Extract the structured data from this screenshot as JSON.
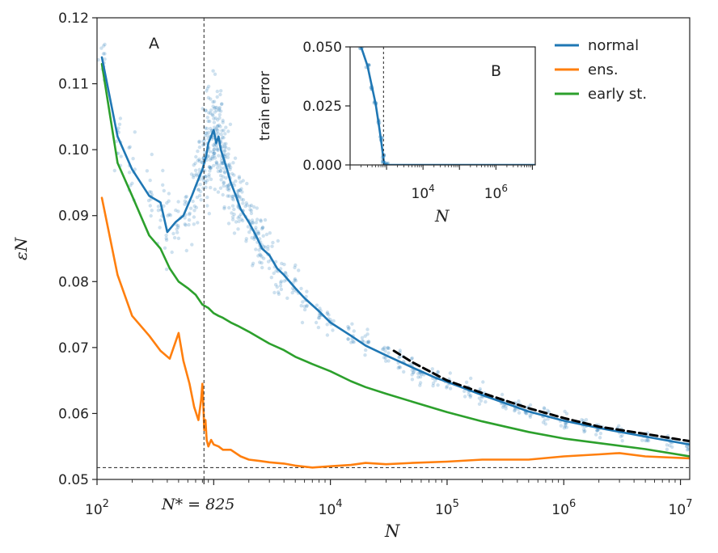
{
  "chart_data": {
    "type": "line",
    "xlabel": "N",
    "ylabel": "εN",
    "xscale": "log",
    "xlim": [
      100,
      12000000
    ],
    "ylim": [
      0.05,
      0.12
    ],
    "yticks": [
      "0.05",
      "0.06",
      "0.07",
      "0.08",
      "0.09",
      "0.10",
      "0.11",
      "0.12"
    ],
    "xticks": [
      {
        "value": 100,
        "base": "10",
        "exp": "2"
      },
      {
        "value": 10000,
        "base": "10",
        "exp": "4"
      },
      {
        "value": 100000,
        "base": "10",
        "exp": "5"
      },
      {
        "value": 1000000,
        "base": "10",
        "exp": "6"
      },
      {
        "value": 10000000,
        "base": "10",
        "exp": "7"
      }
    ],
    "nstar": {
      "value": 825,
      "label": "N* = 825"
    },
    "hline": 0.0518,
    "panel_label": "A",
    "legend": {
      "position": "top-right",
      "entries": [
        {
          "label": "normal",
          "color": "#1f77b4"
        },
        {
          "label": "ens.",
          "color": "#ff7f0e"
        },
        {
          "label": "early st.",
          "color": "#2ca02c"
        }
      ]
    },
    "series": [
      {
        "name": "normal",
        "color": "#1f77b4",
        "x": [
          110,
          150,
          200,
          280,
          350,
          400,
          470,
          550,
          650,
          720,
          800,
          860,
          900,
          950,
          1000,
          1050,
          1100,
          1150,
          1200,
          1300,
          1400,
          1550,
          1700,
          2000,
          2300,
          2600,
          3000,
          3500,
          4000,
          5000,
          6000,
          8000,
          10000,
          15000,
          20000,
          30000,
          50000,
          80000,
          100000,
          200000,
          300000,
          500000,
          1000000,
          2000000,
          5000000,
          12000000
        ],
        "y": [
          0.114,
          0.102,
          0.097,
          0.093,
          0.092,
          0.0875,
          0.089,
          0.09,
          0.093,
          0.095,
          0.097,
          0.099,
          0.101,
          0.102,
          0.103,
          0.101,
          0.102,
          0.1,
          0.099,
          0.097,
          0.095,
          0.093,
          0.091,
          0.089,
          0.087,
          0.085,
          0.084,
          0.082,
          0.081,
          0.079,
          0.0775,
          0.0755,
          0.0738,
          0.0718,
          0.0703,
          0.0688,
          0.067,
          0.0654,
          0.0648,
          0.0628,
          0.0617,
          0.0603,
          0.0589,
          0.0578,
          0.0565,
          0.0553
        ]
      },
      {
        "name": "ens.",
        "color": "#ff7f0e",
        "x": [
          110,
          150,
          200,
          280,
          350,
          420,
          500,
          550,
          620,
          680,
          740,
          780,
          800,
          820,
          830,
          850,
          870,
          900,
          950,
          1000,
          1100,
          1200,
          1400,
          1700,
          2000,
          2500,
          3000,
          4000,
          5000,
          7000,
          10000,
          15000,
          20000,
          30000,
          50000,
          100000,
          200000,
          500000,
          1000000,
          2000000,
          3000000,
          5000000,
          12000000
        ],
        "y": [
          0.0927,
          0.081,
          0.0748,
          0.0718,
          0.0695,
          0.0683,
          0.0722,
          0.068,
          0.0645,
          0.061,
          0.059,
          0.062,
          0.0645,
          0.06,
          0.0575,
          0.059,
          0.056,
          0.055,
          0.056,
          0.0553,
          0.055,
          0.0545,
          0.0545,
          0.0535,
          0.053,
          0.0528,
          0.0526,
          0.0524,
          0.0521,
          0.0518,
          0.052,
          0.0522,
          0.0525,
          0.0523,
          0.0525,
          0.0527,
          0.053,
          0.053,
          0.0535,
          0.0538,
          0.054,
          0.0535,
          0.0532
        ]
      },
      {
        "name": "early st.",
        "color": "#2ca02c",
        "x": [
          110,
          150,
          200,
          280,
          350,
          420,
          500,
          600,
          700,
          800,
          900,
          1000,
          1100,
          1200,
          1400,
          1600,
          2000,
          2500,
          3000,
          4000,
          5000,
          7000,
          10000,
          15000,
          20000,
          30000,
          50000,
          100000,
          200000,
          500000,
          1000000,
          2000000,
          5000000,
          12000000
        ],
        "y": [
          0.113,
          0.098,
          0.093,
          0.087,
          0.085,
          0.082,
          0.08,
          0.079,
          0.078,
          0.0765,
          0.076,
          0.0752,
          0.0748,
          0.0745,
          0.0738,
          0.0733,
          0.0724,
          0.0714,
          0.0706,
          0.0696,
          0.0686,
          0.0675,
          0.0664,
          0.0649,
          0.064,
          0.063,
          0.0618,
          0.0602,
          0.0588,
          0.0572,
          0.0562,
          0.0555,
          0.0546,
          0.0535
        ]
      },
      {
        "name": "fit",
        "color": "#000000",
        "x": [
          35000,
          50000,
          100000,
          200000,
          500000,
          1000000,
          2000000,
          5000000,
          12000000
        ],
        "y": [
          0.0695,
          0.0678,
          0.065,
          0.0631,
          0.0608,
          0.0593,
          0.058,
          0.0569,
          0.0558
        ]
      }
    ],
    "scatter_samples": {
      "name": "normal samples",
      "color": "#1f77b4",
      "x": [
        110,
        150,
        200,
        280,
        350,
        400,
        470,
        550,
        650,
        720,
        800,
        860,
        900,
        950,
        1000,
        1050,
        1100,
        1150,
        1200,
        1300,
        1400,
        1550,
        1700,
        2000,
        2300,
        2600,
        3000,
        3500,
        4000,
        5000,
        6000,
        8000,
        10000,
        15000,
        20000,
        30000,
        40000,
        50000,
        60000,
        80000,
        100000,
        150000,
        200000,
        300000,
        400000,
        500000,
        700000,
        1000000,
        1500000,
        2000000,
        3000000,
        5000000,
        8000000,
        12000000
      ],
      "y": [
        0.114,
        0.102,
        0.097,
        0.093,
        0.092,
        0.0875,
        0.089,
        0.09,
        0.093,
        0.095,
        0.097,
        0.099,
        0.101,
        0.102,
        0.103,
        0.101,
        0.102,
        0.1,
        0.099,
        0.097,
        0.095,
        0.093,
        0.091,
        0.089,
        0.087,
        0.085,
        0.084,
        0.082,
        0.081,
        0.079,
        0.0775,
        0.0755,
        0.0738,
        0.0718,
        0.0703,
        0.0688,
        0.0679,
        0.067,
        0.0663,
        0.0654,
        0.0648,
        0.0636,
        0.0628,
        0.0617,
        0.061,
        0.0603,
        0.0596,
        0.0589,
        0.0582,
        0.0578,
        0.0572,
        0.0565,
        0.0558,
        0.0553
      ],
      "spread": [
        0.004,
        0.005,
        0.004,
        0.004,
        0.004,
        0.004,
        0.004,
        0.004,
        0.005,
        0.005,
        0.005,
        0.006,
        0.006,
        0.006,
        0.006,
        0.006,
        0.006,
        0.005,
        0.005,
        0.005,
        0.005,
        0.005,
        0.004,
        0.004,
        0.004,
        0.004,
        0.003,
        0.003,
        0.003,
        0.003,
        0.003,
        0.002,
        0.002,
        0.002,
        0.002,
        0.0015,
        0.0015,
        0.0015,
        0.0015,
        0.0015,
        0.0012,
        0.0012,
        0.0012,
        0.0012,
        0.001,
        0.001,
        0.001,
        0.001,
        0.001,
        0.001,
        0.0009,
        0.0009,
        0.0008,
        0.0008
      ]
    },
    "inset": {
      "panel_label": "B",
      "xlabel": "N",
      "ylabel": "train error",
      "xscale": "log",
      "xlim": [
        100,
        12000000
      ],
      "ylim": [
        0,
        0.05
      ],
      "yticks": [
        "0.000",
        "0.025",
        "0.050"
      ],
      "xticks": [
        {
          "value": 10000,
          "base": "10",
          "exp": "4"
        },
        {
          "value": 1000000,
          "base": "10",
          "exp": "6"
        }
      ],
      "nstar": 825,
      "series": [
        {
          "name": "normal",
          "color": "#1f77b4",
          "x": [
            200,
            300,
            400,
            500,
            600,
            700,
            800,
            850,
            900,
            1000,
            10000,
            100000,
            1000000,
            12000000
          ],
          "y": [
            0.05,
            0.042,
            0.033,
            0.026,
            0.018,
            0.011,
            0.004,
            0.001,
            0.0,
            0.0,
            0.0,
            0.0,
            0.0,
            0.0
          ]
        }
      ]
    }
  }
}
